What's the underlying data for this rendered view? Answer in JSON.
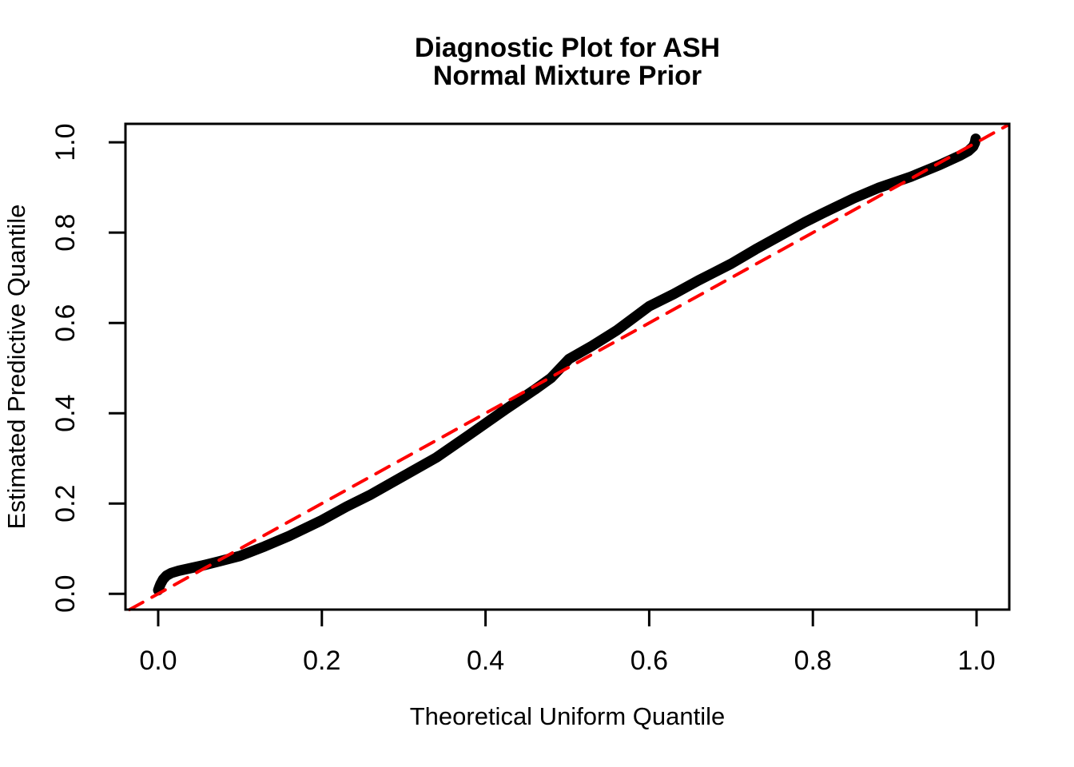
{
  "figure": {
    "title_line1": "Diagnostic Plot for ASH",
    "title_line2": "Normal Mixture Prior"
  },
  "chart_data": {
    "type": "line",
    "title": "Diagnostic Plot for ASH / Normal Mixture Prior",
    "xlabel": "Theoretical Uniform Quantile",
    "ylabel": "Estimated Predictive Quantile",
    "xlim": [
      -0.04,
      1.04
    ],
    "ylim": [
      -0.035,
      1.041
    ],
    "x_ticks": [
      0.0,
      0.2,
      0.4,
      0.6,
      0.8,
      1.0
    ],
    "x_tick_labels": [
      "0.0",
      "0.2",
      "0.4",
      "0.6",
      "0.8",
      "1.0"
    ],
    "y_ticks": [
      0.0,
      0.2,
      0.4,
      0.6,
      0.8,
      1.0
    ],
    "y_tick_labels": [
      "0.0",
      "0.2",
      "0.4",
      "0.6",
      "0.8",
      "1.0"
    ],
    "grid": false,
    "legend_position": "none",
    "frame_color": "#000000",
    "series": [
      {
        "name": "estimated-predictive-quantiles",
        "color": "#000000",
        "dash": "solid",
        "line_width": 13,
        "points": [
          [
            0.0,
            0.008
          ],
          [
            0.001,
            0.013
          ],
          [
            0.003,
            0.022
          ],
          [
            0.006,
            0.032
          ],
          [
            0.01,
            0.04
          ],
          [
            0.016,
            0.046
          ],
          [
            0.025,
            0.051
          ],
          [
            0.04,
            0.057
          ],
          [
            0.055,
            0.063
          ],
          [
            0.075,
            0.072
          ],
          [
            0.1,
            0.084
          ],
          [
            0.13,
            0.105
          ],
          [
            0.16,
            0.128
          ],
          [
            0.2,
            0.163
          ],
          [
            0.23,
            0.193
          ],
          [
            0.26,
            0.22
          ],
          [
            0.3,
            0.261
          ],
          [
            0.34,
            0.302
          ],
          [
            0.38,
            0.352
          ],
          [
            0.42,
            0.403
          ],
          [
            0.46,
            0.452
          ],
          [
            0.48,
            0.478
          ],
          [
            0.502,
            0.52
          ],
          [
            0.53,
            0.549
          ],
          [
            0.56,
            0.583
          ],
          [
            0.6,
            0.637
          ],
          [
            0.63,
            0.664
          ],
          [
            0.66,
            0.694
          ],
          [
            0.7,
            0.731
          ],
          [
            0.73,
            0.763
          ],
          [
            0.76,
            0.793
          ],
          [
            0.79,
            0.823
          ],
          [
            0.812,
            0.843
          ],
          [
            0.85,
            0.876
          ],
          [
            0.88,
            0.899
          ],
          [
            0.92,
            0.924
          ],
          [
            0.955,
            0.95
          ],
          [
            0.98,
            0.971
          ],
          [
            0.99,
            0.981
          ],
          [
            0.996,
            0.991
          ],
          [
            0.998,
            0.999
          ],
          [
            0.999,
            1.008
          ]
        ]
      },
      {
        "name": "reference-line-y-equals-x",
        "color": "#FF0000",
        "dash": "dashed",
        "line_width": 4,
        "points": [
          [
            -0.035,
            -0.035
          ],
          [
            1.038,
            1.038
          ]
        ]
      }
    ]
  }
}
